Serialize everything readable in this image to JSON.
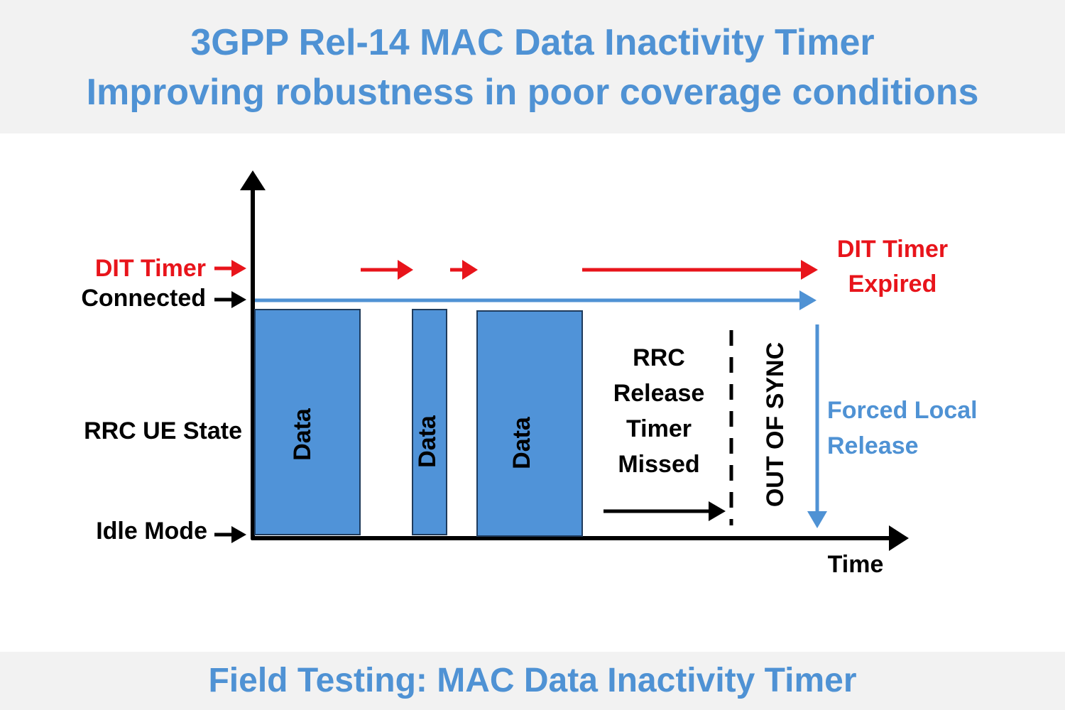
{
  "header": {
    "title_line1": "3GPP Rel-14 MAC Data Inactivity Timer",
    "title_line2": "Improving robustness in poor coverage conditions"
  },
  "footer": {
    "text": "Field Testing: MAC Data Inactivity Timer"
  },
  "colors": {
    "accent_blue": "#4f92d4",
    "bar_blue": "#5093d8",
    "red": "#e8141b",
    "black": "#000000",
    "band_gray": "#f2f2f2"
  },
  "diagram": {
    "y_labels": {
      "dit_timer": "DIT Timer",
      "connected": "Connected",
      "rrc_ue_state": "RRC UE State",
      "idle_mode": "Idle Mode"
    },
    "x_axis_label": "Time",
    "data_blocks": [
      "Data",
      "Data",
      "Data"
    ],
    "rrc_release_timer_missed": [
      "RRC",
      "Release",
      "Timer",
      "Missed"
    ],
    "out_of_sync": "OUT OF SYNC",
    "dit_timer_expired": [
      "DIT Timer",
      "Expired"
    ],
    "forced_local_release": [
      "Forced Local",
      "Release"
    ]
  }
}
